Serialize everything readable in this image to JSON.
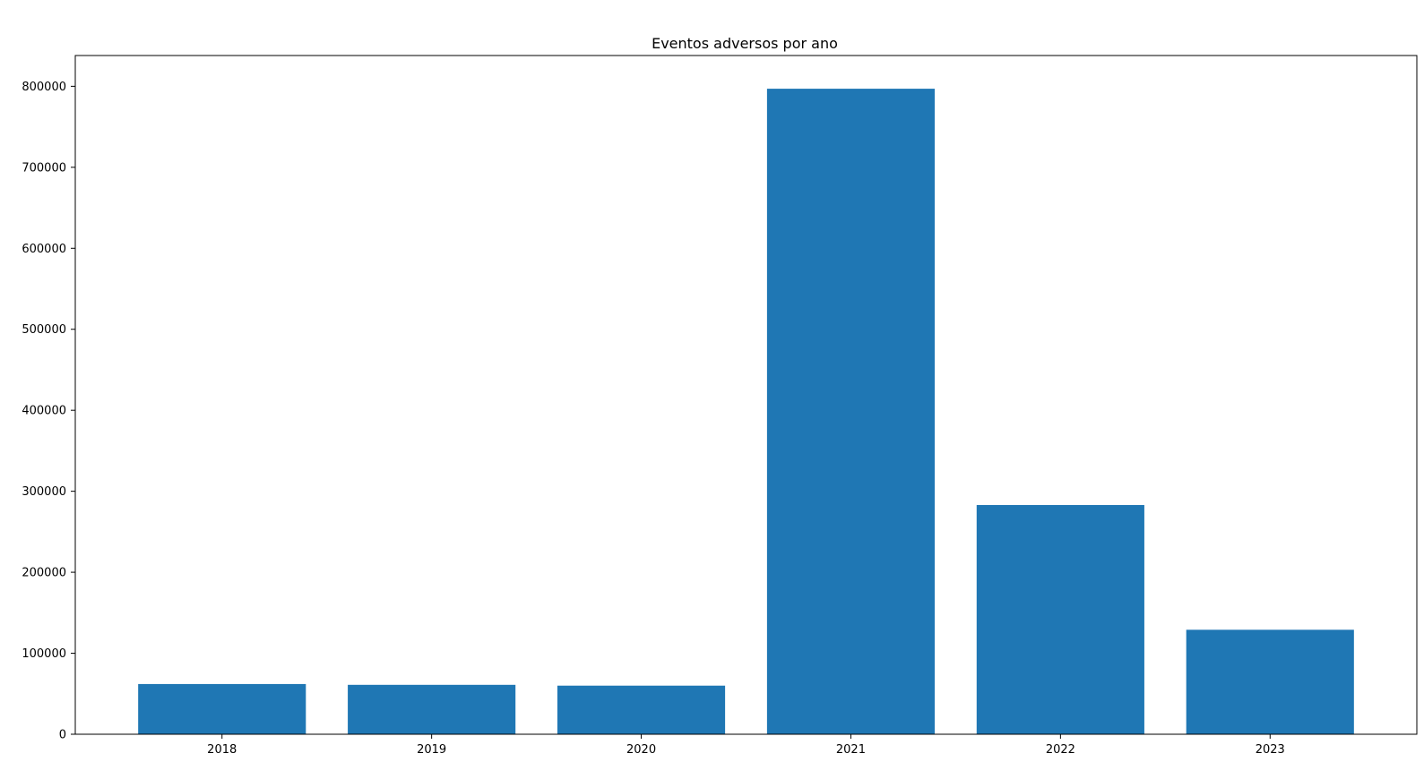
{
  "chart_data": {
    "type": "bar",
    "title": "Eventos adversos por ano",
    "xlabel": "",
    "ylabel": "",
    "categories": [
      "2018",
      "2019",
      "2020",
      "2021",
      "2022",
      "2023"
    ],
    "values": [
      62000,
      61000,
      60000,
      797000,
      283000,
      129000
    ],
    "ylim": [
      0,
      838000
    ],
    "yticks": [
      0,
      100000,
      200000,
      300000,
      400000,
      500000,
      600000,
      700000,
      800000
    ],
    "ytick_labels": [
      "0",
      "100000",
      "200000",
      "300000",
      "400000",
      "500000",
      "600000",
      "700000",
      "800000"
    ],
    "grid": false,
    "legend": "none",
    "colors": {
      "bar": "#1f77b4",
      "axis": "#000000",
      "background": "#ffffff"
    }
  }
}
